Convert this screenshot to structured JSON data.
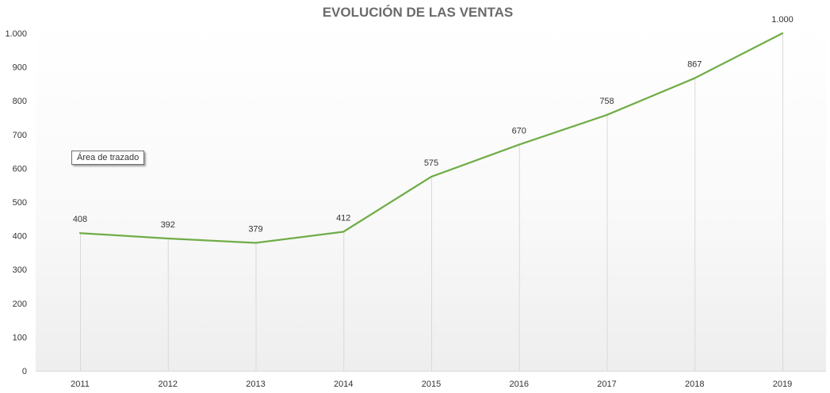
{
  "chart_data": {
    "type": "line",
    "title": "EVOLUCIÓN DE LAS VENTAS",
    "categories": [
      "2011",
      "2012",
      "2013",
      "2014",
      "2015",
      "2016",
      "2017",
      "2018",
      "2019"
    ],
    "values": [
      408,
      392,
      379,
      412,
      575,
      670,
      758,
      867,
      1000
    ],
    "data_labels": [
      "408",
      "392",
      "379",
      "412",
      "575",
      "670",
      "758",
      "867",
      "1.000"
    ],
    "y_ticks": [
      0,
      100,
      200,
      300,
      400,
      500,
      600,
      700,
      800,
      900,
      1000
    ],
    "y_tick_labels": [
      "0",
      "100",
      "200",
      "300",
      "400",
      "500",
      "600",
      "700",
      "800",
      "900",
      "1.000"
    ],
    "ylim": [
      0,
      1000
    ],
    "xlabel": "",
    "ylabel": "",
    "grid": "vertical drop lines",
    "legend": "none",
    "line_color": "#70ad47",
    "tooltip_text": "Área de trazado"
  }
}
